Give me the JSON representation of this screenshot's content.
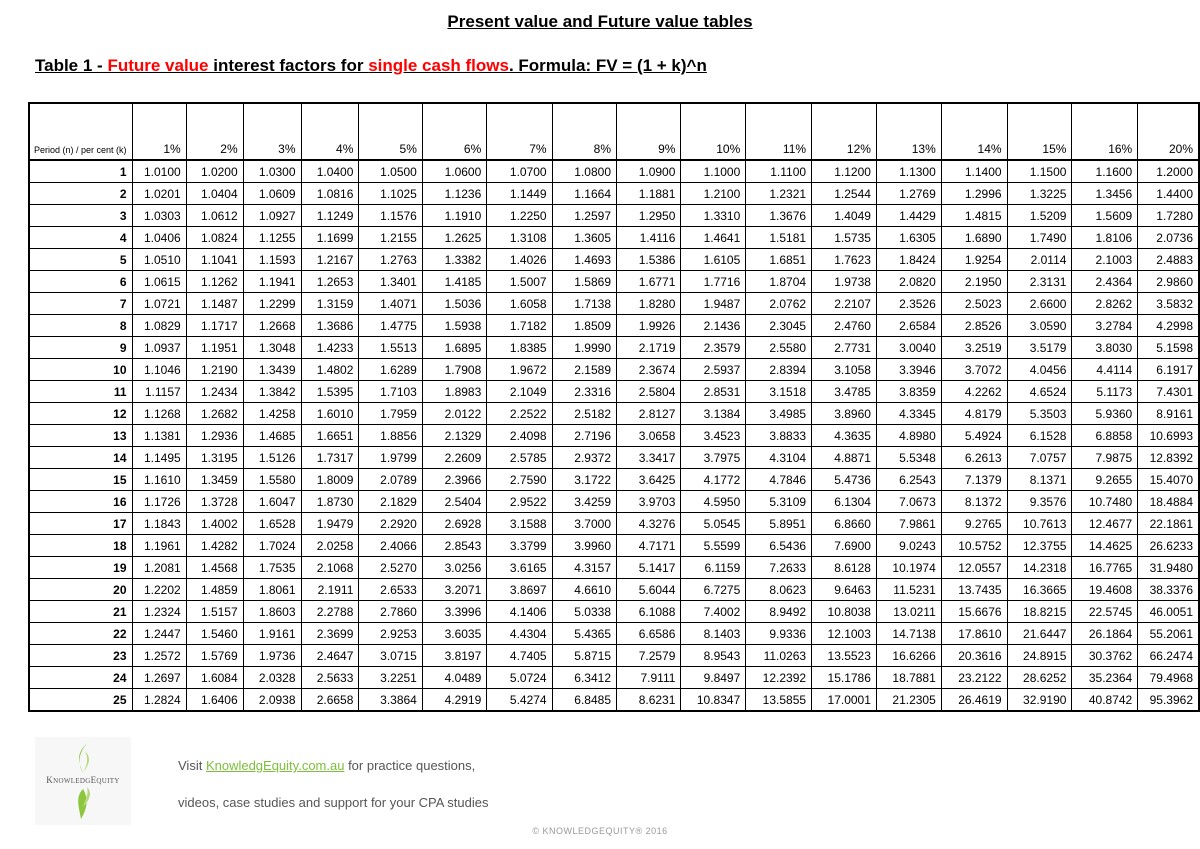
{
  "title": "Present value and Future value tables",
  "table_title": {
    "prefix": "Table 1 - ",
    "highlight1": "Future value",
    "middle": " interest factors for ",
    "highlight2": "single cash flows",
    "suffix": ". Formula: FV = (1 + k)^n"
  },
  "colors": {
    "highlight": "#ff0000",
    "link": "#7bbf3a"
  },
  "table": {
    "corner_label": "Period (n) / per cent (k)",
    "columns": [
      "1%",
      "2%",
      "3%",
      "4%",
      "5%",
      "6%",
      "7%",
      "8%",
      "9%",
      "10%",
      "11%",
      "12%",
      "13%",
      "14%",
      "15%",
      "16%",
      "20%"
    ],
    "rows": [
      {
        "period": "1",
        "values": [
          "1.0100",
          "1.0200",
          "1.0300",
          "1.0400",
          "1.0500",
          "1.0600",
          "1.0700",
          "1.0800",
          "1.0900",
          "1.1000",
          "1.1100",
          "1.1200",
          "1.1300",
          "1.1400",
          "1.1500",
          "1.1600",
          "1.2000"
        ]
      },
      {
        "period": "2",
        "values": [
          "1.0201",
          "1.0404",
          "1.0609",
          "1.0816",
          "1.1025",
          "1.1236",
          "1.1449",
          "1.1664",
          "1.1881",
          "1.2100",
          "1.2321",
          "1.2544",
          "1.2769",
          "1.2996",
          "1.3225",
          "1.3456",
          "1.4400"
        ]
      },
      {
        "period": "3",
        "values": [
          "1.0303",
          "1.0612",
          "1.0927",
          "1.1249",
          "1.1576",
          "1.1910",
          "1.2250",
          "1.2597",
          "1.2950",
          "1.3310",
          "1.3676",
          "1.4049",
          "1.4429",
          "1.4815",
          "1.5209",
          "1.5609",
          "1.7280"
        ]
      },
      {
        "period": "4",
        "values": [
          "1.0406",
          "1.0824",
          "1.1255",
          "1.1699",
          "1.2155",
          "1.2625",
          "1.3108",
          "1.3605",
          "1.4116",
          "1.4641",
          "1.5181",
          "1.5735",
          "1.6305",
          "1.6890",
          "1.7490",
          "1.8106",
          "2.0736"
        ]
      },
      {
        "period": "5",
        "values": [
          "1.0510",
          "1.1041",
          "1.1593",
          "1.2167",
          "1.2763",
          "1.3382",
          "1.4026",
          "1.4693",
          "1.5386",
          "1.6105",
          "1.6851",
          "1.7623",
          "1.8424",
          "1.9254",
          "2.0114",
          "2.1003",
          "2.4883"
        ]
      },
      {
        "period": "6",
        "values": [
          "1.0615",
          "1.1262",
          "1.1941",
          "1.2653",
          "1.3401",
          "1.4185",
          "1.5007",
          "1.5869",
          "1.6771",
          "1.7716",
          "1.8704",
          "1.9738",
          "2.0820",
          "2.1950",
          "2.3131",
          "2.4364",
          "2.9860"
        ]
      },
      {
        "period": "7",
        "values": [
          "1.0721",
          "1.1487",
          "1.2299",
          "1.3159",
          "1.4071",
          "1.5036",
          "1.6058",
          "1.7138",
          "1.8280",
          "1.9487",
          "2.0762",
          "2.2107",
          "2.3526",
          "2.5023",
          "2.6600",
          "2.8262",
          "3.5832"
        ]
      },
      {
        "period": "8",
        "values": [
          "1.0829",
          "1.1717",
          "1.2668",
          "1.3686",
          "1.4775",
          "1.5938",
          "1.7182",
          "1.8509",
          "1.9926",
          "2.1436",
          "2.3045",
          "2.4760",
          "2.6584",
          "2.8526",
          "3.0590",
          "3.2784",
          "4.2998"
        ]
      },
      {
        "period": "9",
        "values": [
          "1.0937",
          "1.1951",
          "1.3048",
          "1.4233",
          "1.5513",
          "1.6895",
          "1.8385",
          "1.9990",
          "2.1719",
          "2.3579",
          "2.5580",
          "2.7731",
          "3.0040",
          "3.2519",
          "3.5179",
          "3.8030",
          "5.1598"
        ]
      },
      {
        "period": "10",
        "values": [
          "1.1046",
          "1.2190",
          "1.3439",
          "1.4802",
          "1.6289",
          "1.7908",
          "1.9672",
          "2.1589",
          "2.3674",
          "2.5937",
          "2.8394",
          "3.1058",
          "3.3946",
          "3.7072",
          "4.0456",
          "4.4114",
          "6.1917"
        ]
      },
      {
        "period": "11",
        "values": [
          "1.1157",
          "1.2434",
          "1.3842",
          "1.5395",
          "1.7103",
          "1.8983",
          "2.1049",
          "2.3316",
          "2.5804",
          "2.8531",
          "3.1518",
          "3.4785",
          "3.8359",
          "4.2262",
          "4.6524",
          "5.1173",
          "7.4301"
        ]
      },
      {
        "period": "12",
        "values": [
          "1.1268",
          "1.2682",
          "1.4258",
          "1.6010",
          "1.7959",
          "2.0122",
          "2.2522",
          "2.5182",
          "2.8127",
          "3.1384",
          "3.4985",
          "3.8960",
          "4.3345",
          "4.8179",
          "5.3503",
          "5.9360",
          "8.9161"
        ]
      },
      {
        "period": "13",
        "values": [
          "1.1381",
          "1.2936",
          "1.4685",
          "1.6651",
          "1.8856",
          "2.1329",
          "2.4098",
          "2.7196",
          "3.0658",
          "3.4523",
          "3.8833",
          "4.3635",
          "4.8980",
          "5.4924",
          "6.1528",
          "6.8858",
          "10.6993"
        ]
      },
      {
        "period": "14",
        "values": [
          "1.1495",
          "1.3195",
          "1.5126",
          "1.7317",
          "1.9799",
          "2.2609",
          "2.5785",
          "2.9372",
          "3.3417",
          "3.7975",
          "4.3104",
          "4.8871",
          "5.5348",
          "6.2613",
          "7.0757",
          "7.9875",
          "12.8392"
        ]
      },
      {
        "period": "15",
        "values": [
          "1.1610",
          "1.3459",
          "1.5580",
          "1.8009",
          "2.0789",
          "2.3966",
          "2.7590",
          "3.1722",
          "3.6425",
          "4.1772",
          "4.7846",
          "5.4736",
          "6.2543",
          "7.1379",
          "8.1371",
          "9.2655",
          "15.4070"
        ]
      },
      {
        "period": "16",
        "values": [
          "1.1726",
          "1.3728",
          "1.6047",
          "1.8730",
          "2.1829",
          "2.5404",
          "2.9522",
          "3.4259",
          "3.9703",
          "4.5950",
          "5.3109",
          "6.1304",
          "7.0673",
          "8.1372",
          "9.3576",
          "10.7480",
          "18.4884"
        ]
      },
      {
        "period": "17",
        "values": [
          "1.1843",
          "1.4002",
          "1.6528",
          "1.9479",
          "2.2920",
          "2.6928",
          "3.1588",
          "3.7000",
          "4.3276",
          "5.0545",
          "5.8951",
          "6.8660",
          "7.9861",
          "9.2765",
          "10.7613",
          "12.4677",
          "22.1861"
        ]
      },
      {
        "period": "18",
        "values": [
          "1.1961",
          "1.4282",
          "1.7024",
          "2.0258",
          "2.4066",
          "2.8543",
          "3.3799",
          "3.9960",
          "4.7171",
          "5.5599",
          "6.5436",
          "7.6900",
          "9.0243",
          "10.5752",
          "12.3755",
          "14.4625",
          "26.6233"
        ]
      },
      {
        "period": "19",
        "values": [
          "1.2081",
          "1.4568",
          "1.7535",
          "2.1068",
          "2.5270",
          "3.0256",
          "3.6165",
          "4.3157",
          "5.1417",
          "6.1159",
          "7.2633",
          "8.6128",
          "10.1974",
          "12.0557",
          "14.2318",
          "16.7765",
          "31.9480"
        ]
      },
      {
        "period": "20",
        "values": [
          "1.2202",
          "1.4859",
          "1.8061",
          "2.1911",
          "2.6533",
          "3.2071",
          "3.8697",
          "4.6610",
          "5.6044",
          "6.7275",
          "8.0623",
          "9.6463",
          "11.5231",
          "13.7435",
          "16.3665",
          "19.4608",
          "38.3376"
        ]
      },
      {
        "period": "21",
        "values": [
          "1.2324",
          "1.5157",
          "1.8603",
          "2.2788",
          "2.7860",
          "3.3996",
          "4.1406",
          "5.0338",
          "6.1088",
          "7.4002",
          "8.9492",
          "10.8038",
          "13.0211",
          "15.6676",
          "18.8215",
          "22.5745",
          "46.0051"
        ]
      },
      {
        "period": "22",
        "values": [
          "1.2447",
          "1.5460",
          "1.9161",
          "2.3699",
          "2.9253",
          "3.6035",
          "4.4304",
          "5.4365",
          "6.6586",
          "8.1403",
          "9.9336",
          "12.1003",
          "14.7138",
          "17.8610",
          "21.6447",
          "26.1864",
          "55.2061"
        ]
      },
      {
        "period": "23",
        "values": [
          "1.2572",
          "1.5769",
          "1.9736",
          "2.4647",
          "3.0715",
          "3.8197",
          "4.7405",
          "5.8715",
          "7.2579",
          "8.9543",
          "11.0263",
          "13.5523",
          "16.6266",
          "20.3616",
          "24.8915",
          "30.3762",
          "66.2474"
        ]
      },
      {
        "period": "24",
        "values": [
          "1.2697",
          "1.6084",
          "2.0328",
          "2.5633",
          "3.2251",
          "4.0489",
          "5.0724",
          "6.3412",
          "7.9111",
          "9.8497",
          "12.2392",
          "15.1786",
          "18.7881",
          "23.2122",
          "28.6252",
          "35.2364",
          "79.4968"
        ]
      },
      {
        "period": "25",
        "values": [
          "1.2824",
          "1.6406",
          "2.0938",
          "2.6658",
          "3.3864",
          "4.2919",
          "5.4274",
          "6.8485",
          "8.6231",
          "10.8347",
          "13.5855",
          "17.0001",
          "21.2305",
          "26.4619",
          "32.9190",
          "40.8742",
          "95.3962"
        ]
      }
    ]
  },
  "footer": {
    "logo_text": "KnowledgEquity",
    "line1_prefix": "Visit ",
    "link": "KnowledgEquity.com.au",
    "line1_suffix": " for practice questions,",
    "line2": "videos, case studies and support for your CPA studies",
    "copyright": "© KNOWLEDGEQUITY® 2016"
  }
}
